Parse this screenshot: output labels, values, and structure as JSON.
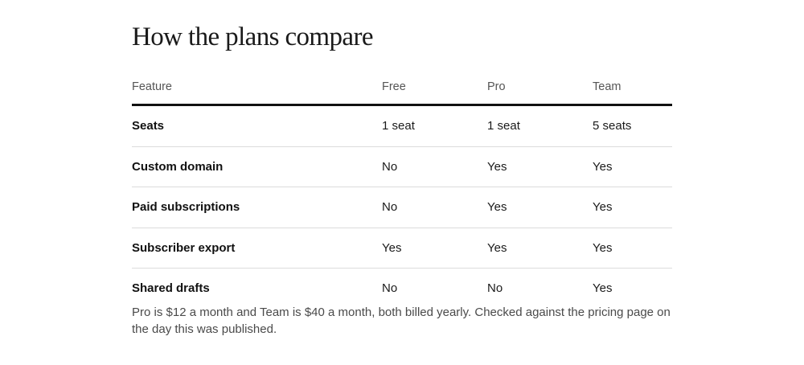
{
  "title": "How the plans compare",
  "table": {
    "headers": [
      "Feature",
      "Free",
      "Pro",
      "Team"
    ],
    "rows": [
      [
        "Seats",
        "1 seat",
        "1 seat",
        "5 seats"
      ],
      [
        "Custom domain",
        "No",
        "Yes",
        "Yes"
      ],
      [
        "Paid subscriptions",
        "No",
        "Yes",
        "Yes"
      ],
      [
        "Subscriber export",
        "Yes",
        "Yes",
        "Yes"
      ],
      [
        "Shared drafts",
        "No",
        "No",
        "Yes"
      ]
    ]
  },
  "note": "Pro is $12 a month and Team is $40 a month, both billed yearly. Checked against the pricing page on the day this was published."
}
